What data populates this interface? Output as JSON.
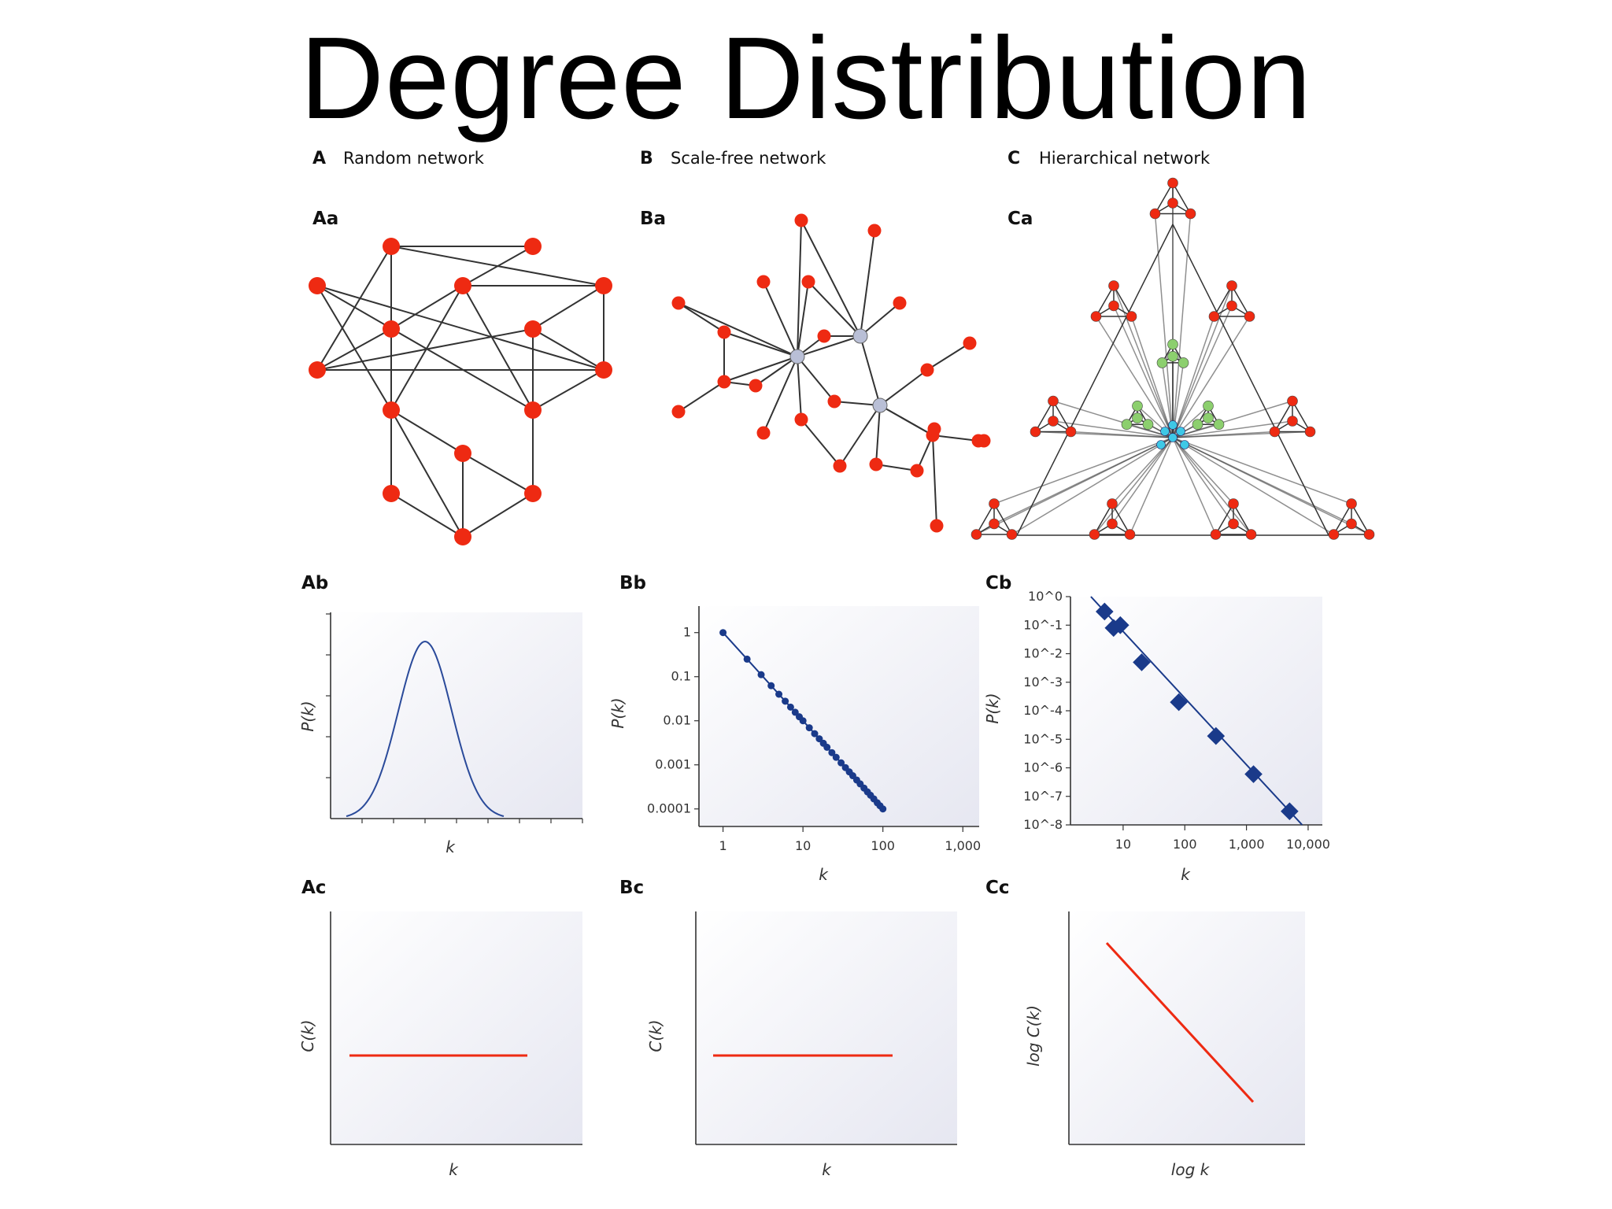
{
  "title": "Degree Distribution",
  "sections": [
    {
      "letter": "A",
      "name": "Random network"
    },
    {
      "letter": "B",
      "name": "Scale-free network"
    },
    {
      "letter": "C",
      "name": "Hierarchical network"
    }
  ],
  "panel_labels": {
    "Aa": "Aa",
    "Ba": "Ba",
    "Ca": "Ca",
    "Ab": "Ab",
    "Bb": "Bb",
    "Cb": "Cb",
    "Ac": "Ac",
    "Bc": "Bc",
    "Cc": "Cc"
  },
  "colors": {
    "node_red": "#ee2a12",
    "hub_grey": "#b9bfd6",
    "hub_cyan": "#3ec8e6",
    "node_green": "#8ccf6e",
    "series_blue": "#1a3a8a",
    "series_red": "#ee2a12"
  },
  "chart_data": [
    {
      "id": "Ab",
      "type": "line",
      "xlabel": "k",
      "ylabel": "P(k)",
      "shape": "bell (Poisson/Gaussian)",
      "x_tick_count": 8,
      "y_tick_count": 5
    },
    {
      "id": "Bb",
      "type": "scatter",
      "xlabel": "k",
      "ylabel": "P(k)",
      "x_scale": "log",
      "y_scale": "log",
      "xlim": [
        0.5,
        1600
      ],
      "ylim": [
        4e-05,
        4
      ],
      "x_ticks": [
        1,
        10,
        100,
        1000
      ],
      "x_tick_labels": [
        "1",
        "10",
        "100",
        "1,000"
      ],
      "y_ticks": [
        1,
        0.1,
        0.01,
        0.001,
        0.0001
      ],
      "y_tick_labels": [
        "1",
        "0.1",
        "0.01",
        "0.001",
        "0.0001"
      ],
      "series": [
        {
          "x": [
            1,
            2,
            3,
            4,
            5,
            6,
            7,
            8,
            9,
            10,
            12,
            14,
            16,
            18,
            20,
            23,
            26,
            30,
            34,
            38,
            42,
            47,
            52,
            58,
            64,
            70,
            77,
            85,
            92,
            100
          ],
          "y": [
            1,
            0.25,
            0.111,
            0.0625,
            0.04,
            0.0278,
            0.0204,
            0.0156,
            0.0123,
            0.01,
            0.00694,
            0.0051,
            0.0039,
            0.00309,
            0.0025,
            0.00189,
            0.00148,
            0.00111,
            0.000865,
            0.000693,
            0.000567,
            0.000453,
            0.00037,
            0.000297,
            0.000244,
            0.000204,
            0.000169,
            0.000138,
            0.000118,
            0.0001
          ]
        }
      ],
      "fit_line": {
        "x": [
          1,
          100
        ],
        "y": [
          1,
          0.0001
        ]
      }
    },
    {
      "id": "Cb",
      "type": "scatter",
      "xlabel": "k",
      "ylabel": "P(k)",
      "x_scale": "log",
      "y_scale": "log",
      "xlim": [
        1.4,
        17000
      ],
      "ylim": [
        1e-08,
        1
      ],
      "x_ticks": [
        10,
        100,
        1000,
        10000
      ],
      "x_tick_labels": [
        "10",
        "100",
        "1,000",
        "10,000"
      ],
      "y_ticks": [
        1,
        0.1,
        0.01,
        0.001,
        0.0001,
        1e-05,
        1e-06,
        1e-07,
        1e-08
      ],
      "y_tick_labels": [
        "10^0",
        "10^-1",
        "10^-2",
        "10^-3",
        "10^-4",
        "10^-5",
        "10^-6",
        "10^-7",
        "10^-8"
      ],
      "series": [
        {
          "x": [
            5,
            7,
            9,
            20,
            80,
            320,
            1300,
            5000
          ],
          "y": [
            0.3,
            0.08,
            0.1,
            0.005,
            0.0002,
            1.3e-05,
            6e-07,
            3e-08
          ]
        }
      ],
      "fit_line": {
        "x": [
          3,
          8000
        ],
        "y": [
          1,
          1e-08
        ]
      }
    },
    {
      "id": "Ac",
      "type": "line",
      "xlabel": "k",
      "ylabel": "C(k)",
      "shape": "constant"
    },
    {
      "id": "Bc",
      "type": "line",
      "xlabel": "k",
      "ylabel": "C(k)",
      "shape": "constant"
    },
    {
      "id": "Cc",
      "type": "line",
      "xlabel": "log k",
      "ylabel": "log C(k)",
      "shape": "decreasing straight line"
    }
  ]
}
